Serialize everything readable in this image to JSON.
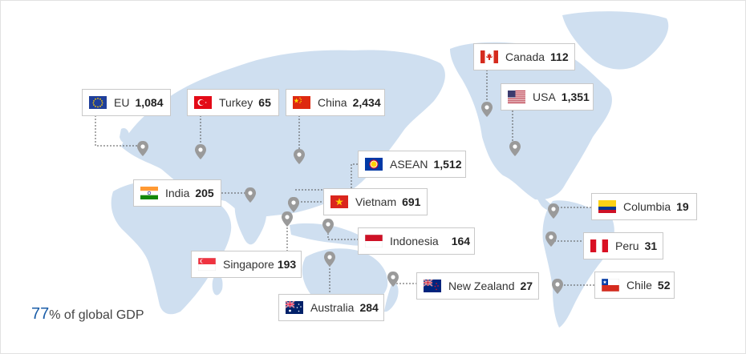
{
  "markers": [
    {
      "key": "eu",
      "name": "EU",
      "value": "1,084",
      "flag": "eu-flag-icon"
    },
    {
      "key": "turkey",
      "name": "Turkey",
      "value": "65",
      "flag": "turkey-flag-icon"
    },
    {
      "key": "china",
      "name": "China",
      "value": "2,434",
      "flag": "china-flag-icon"
    },
    {
      "key": "canada",
      "name": "Canada",
      "value": "112",
      "flag": "canada-flag-icon"
    },
    {
      "key": "usa",
      "name": "USA",
      "value": "1,351",
      "flag": "usa-flag-icon"
    },
    {
      "key": "asean",
      "name": "ASEAN",
      "value": "1,512",
      "flag": "asean-flag-icon"
    },
    {
      "key": "india",
      "name": "India",
      "value": "205",
      "flag": "india-flag-icon"
    },
    {
      "key": "vietnam",
      "name": "Vietnam",
      "value": "691",
      "flag": "vietnam-flag-icon"
    },
    {
      "key": "indonesia",
      "name": "Indonesia",
      "value": "164",
      "flag": "indonesia-flag-icon"
    },
    {
      "key": "singapore",
      "name": "Singapore",
      "value": "193",
      "flag": "singapore-flag-icon"
    },
    {
      "key": "newzealand",
      "name": "New Zealand",
      "value": "27",
      "flag": "new-zealand-flag-icon"
    },
    {
      "key": "australia",
      "name": "Australia",
      "value": "284",
      "flag": "australia-flag-icon"
    },
    {
      "key": "columbia",
      "name": "Columbia",
      "value": "19",
      "flag": "colombia-flag-icon"
    },
    {
      "key": "peru",
      "name": "Peru",
      "value": "31",
      "flag": "peru-flag-icon"
    },
    {
      "key": "chile",
      "name": "Chile",
      "value": "52",
      "flag": "chile-flag-icon"
    }
  ],
  "summary": {
    "percent": "77",
    "label": "% of global GDP"
  },
  "colors": {
    "land": "#cfdff0",
    "pin": "#9a9a9a",
    "connector": "#555555",
    "accent": "#1a5da8",
    "box_border": "#c9c9c9"
  }
}
